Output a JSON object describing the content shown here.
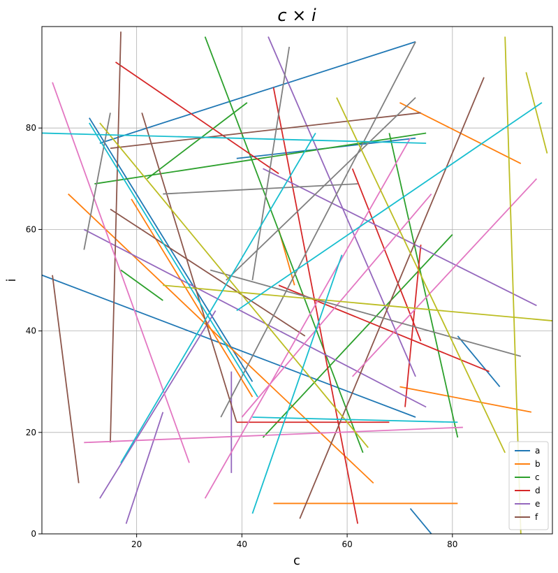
{
  "chart_data": {
    "type": "line",
    "title": "c × i",
    "xlabel": "c",
    "ylabel": "i",
    "xlim": [
      2,
      99
    ],
    "ylim": [
      0,
      100
    ],
    "xticks": [
      20,
      40,
      60,
      80
    ],
    "yticks": [
      0,
      20,
      40,
      60,
      80
    ],
    "grid": true,
    "legend_position": "bottom-right",
    "series": [
      {
        "name": "a",
        "color": "#1f77b4",
        "segments": [
          [
            [
              2,
              51
            ],
            [
              73,
              23
            ]
          ],
          [
            [
              13,
              77
            ],
            [
              73,
              97
            ]
          ],
          [
            [
              11,
              82
            ],
            [
              42,
              30
            ]
          ],
          [
            [
              72,
              5
            ],
            [
              76,
              0
            ]
          ],
          [
            [
              81,
              39
            ],
            [
              89,
              29
            ]
          ],
          [
            [
              39,
              74
            ],
            [
              73,
              78
            ]
          ]
        ]
      },
      {
        "name": "b",
        "color": "#ff7f0e",
        "segments": [
          [
            [
              7,
              67
            ],
            [
              65,
              10
            ]
          ],
          [
            [
              46,
              6
            ],
            [
              81,
              6
            ]
          ],
          [
            [
              70,
              29
            ],
            [
              95,
              24
            ]
          ],
          [
            [
              70,
              85
            ],
            [
              93,
              73
            ]
          ],
          [
            [
              47,
              60
            ],
            [
              50,
              49
            ]
          ],
          [
            [
              19,
              66
            ],
            [
              42,
              27
            ]
          ]
        ]
      },
      {
        "name": "c",
        "color": "#2ca02c",
        "segments": [
          [
            [
              12,
              69
            ],
            [
              75,
              79
            ]
          ],
          [
            [
              22,
              70
            ],
            [
              41,
              85
            ]
          ],
          [
            [
              33,
              98
            ],
            [
              63,
              16
            ]
          ],
          [
            [
              17,
              52
            ],
            [
              25,
              46
            ]
          ],
          [
            [
              44,
              19
            ],
            [
              80,
              59
            ]
          ],
          [
            [
              68,
              79
            ],
            [
              81,
              19
            ]
          ]
        ]
      },
      {
        "name": "d",
        "color": "#d62728",
        "segments": [
          [
            [
              16,
              93
            ],
            [
              47,
              71
            ]
          ],
          [
            [
              46,
              88
            ],
            [
              62,
              2
            ]
          ],
          [
            [
              61,
              72
            ],
            [
              74,
              38
            ]
          ],
          [
            [
              47,
              49
            ],
            [
              87,
              32
            ]
          ],
          [
            [
              71,
              25
            ],
            [
              74,
              57
            ]
          ],
          [
            [
              39,
              22
            ],
            [
              68,
              22
            ]
          ]
        ]
      },
      {
        "name": "e",
        "color": "#9467bd",
        "segments": [
          [
            [
              10,
              60
            ],
            [
              75,
              25
            ]
          ],
          [
            [
              45,
              98
            ],
            [
              73,
              31
            ]
          ],
          [
            [
              13,
              7
            ],
            [
              35,
              44
            ]
          ],
          [
            [
              18,
              2
            ],
            [
              25,
              24
            ]
          ],
          [
            [
              38,
              32
            ],
            [
              38,
              12
            ]
          ],
          [
            [
              44,
              72
            ],
            [
              96,
              45
            ]
          ]
        ]
      },
      {
        "name": "f",
        "color": "#8c564b",
        "segments": [
          [
            [
              4,
              51
            ],
            [
              9,
              10
            ]
          ],
          [
            [
              17,
              99
            ],
            [
              15,
              18
            ]
          ],
          [
            [
              21,
              83
            ],
            [
              39,
              22
            ]
          ],
          [
            [
              15,
              64
            ],
            [
              52,
              39
            ]
          ],
          [
            [
              51,
              3
            ],
            [
              86,
              90
            ]
          ],
          [
            [
              15,
              76
            ],
            [
              74,
              83
            ]
          ]
        ]
      },
      {
        "name": "",
        "color": "#e377c2",
        "segments": [
          [
            [
              4,
              89
            ],
            [
              30,
              14
            ]
          ],
          [
            [
              10,
              18
            ],
            [
              82,
              21
            ]
          ],
          [
            [
              33,
              7
            ],
            [
              72,
              78
            ]
          ],
          [
            [
              61,
              31
            ],
            [
              96,
              70
            ]
          ],
          [
            [
              40,
              23
            ],
            [
              76,
              67
            ]
          ]
        ]
      },
      {
        "name": "",
        "color": "#7f7f7f",
        "segments": [
          [
            [
              10,
              56
            ],
            [
              15,
              83
            ]
          ],
          [
            [
              36,
              23
            ],
            [
              73,
              97
            ]
          ],
          [
            [
              42,
              50
            ],
            [
              49,
              96
            ]
          ],
          [
            [
              25,
              67
            ],
            [
              62,
              69
            ]
          ],
          [
            [
              34,
              52
            ],
            [
              93,
              35
            ]
          ],
          [
            [
              37,
              50
            ],
            [
              73,
              86
            ]
          ]
        ]
      },
      {
        "name": "",
        "color": "#bcbd22",
        "segments": [
          [
            [
              13,
              81
            ],
            [
              64,
              17
            ]
          ],
          [
            [
              25,
              49
            ],
            [
              99,
              42
            ]
          ],
          [
            [
              58,
              86
            ],
            [
              90,
              16
            ]
          ],
          [
            [
              90,
              98
            ],
            [
              93,
              0
            ]
          ],
          [
            [
              94,
              91
            ],
            [
              98,
              75
            ]
          ]
        ]
      },
      {
        "name": "",
        "color": "#17becf",
        "segments": [
          [
            [
              2,
              79
            ],
            [
              75,
              77
            ]
          ],
          [
            [
              17,
              14
            ],
            [
              54,
              79
            ]
          ],
          [
            [
              11,
              81
            ],
            [
              43,
              27
            ]
          ],
          [
            [
              39,
              44
            ],
            [
              97,
              85
            ]
          ],
          [
            [
              42,
              4
            ],
            [
              59,
              55
            ]
          ],
          [
            [
              42,
              23
            ],
            [
              81,
              22
            ]
          ]
        ]
      }
    ]
  }
}
